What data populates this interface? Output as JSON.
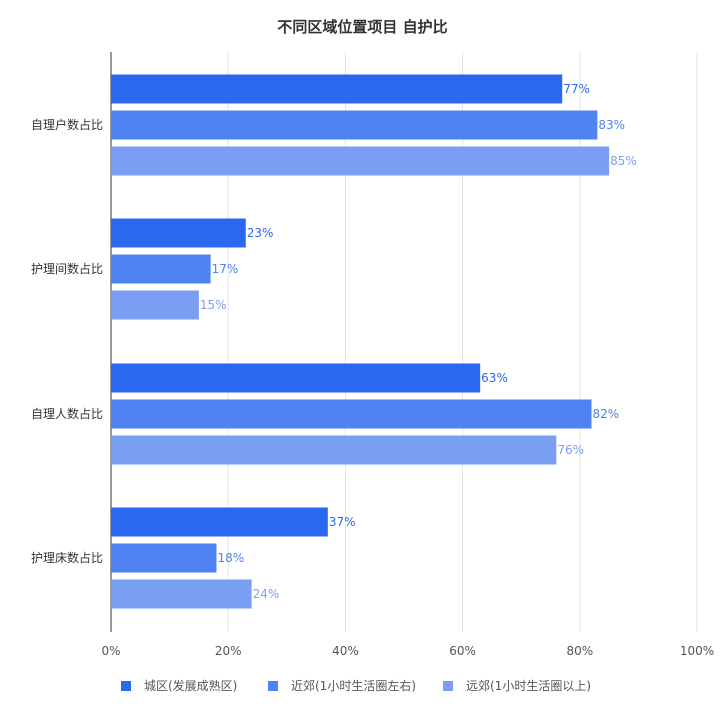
{
  "chart_data": {
    "type": "bar",
    "orientation": "horizontal",
    "title": "不同区域位置项目 自护比",
    "categories": [
      "自理户数占比",
      "护理间数占比",
      "自理人数占比",
      "护理床数占比"
    ],
    "series": [
      {
        "name": "城区(发展成熟区)",
        "color": "#2B68F0",
        "values": [
          77,
          23,
          63,
          37
        ]
      },
      {
        "name": "近郊(1小时生活圈左右)",
        "color": "#4F83F2",
        "values": [
          83,
          17,
          82,
          18
        ]
      },
      {
        "name": "远郊(1小时生活圈以上)",
        "color": "#7A9FF2",
        "values": [
          85,
          15,
          76,
          24
        ]
      }
    ],
    "value_labels": [
      [
        "77%",
        "23%",
        "63%",
        "37%"
      ],
      [
        "83%",
        "17%",
        "82%",
        "18%"
      ],
      [
        "85%",
        "15%",
        "76%",
        "24%"
      ]
    ],
    "x_ticks": [
      0,
      20,
      40,
      60,
      80,
      100
    ],
    "x_tick_labels": [
      "0%",
      "20%",
      "40%",
      "60%",
      "80%",
      "100%"
    ],
    "xlim": [
      0,
      100
    ],
    "grid": true,
    "legend_position": "bottom"
  }
}
